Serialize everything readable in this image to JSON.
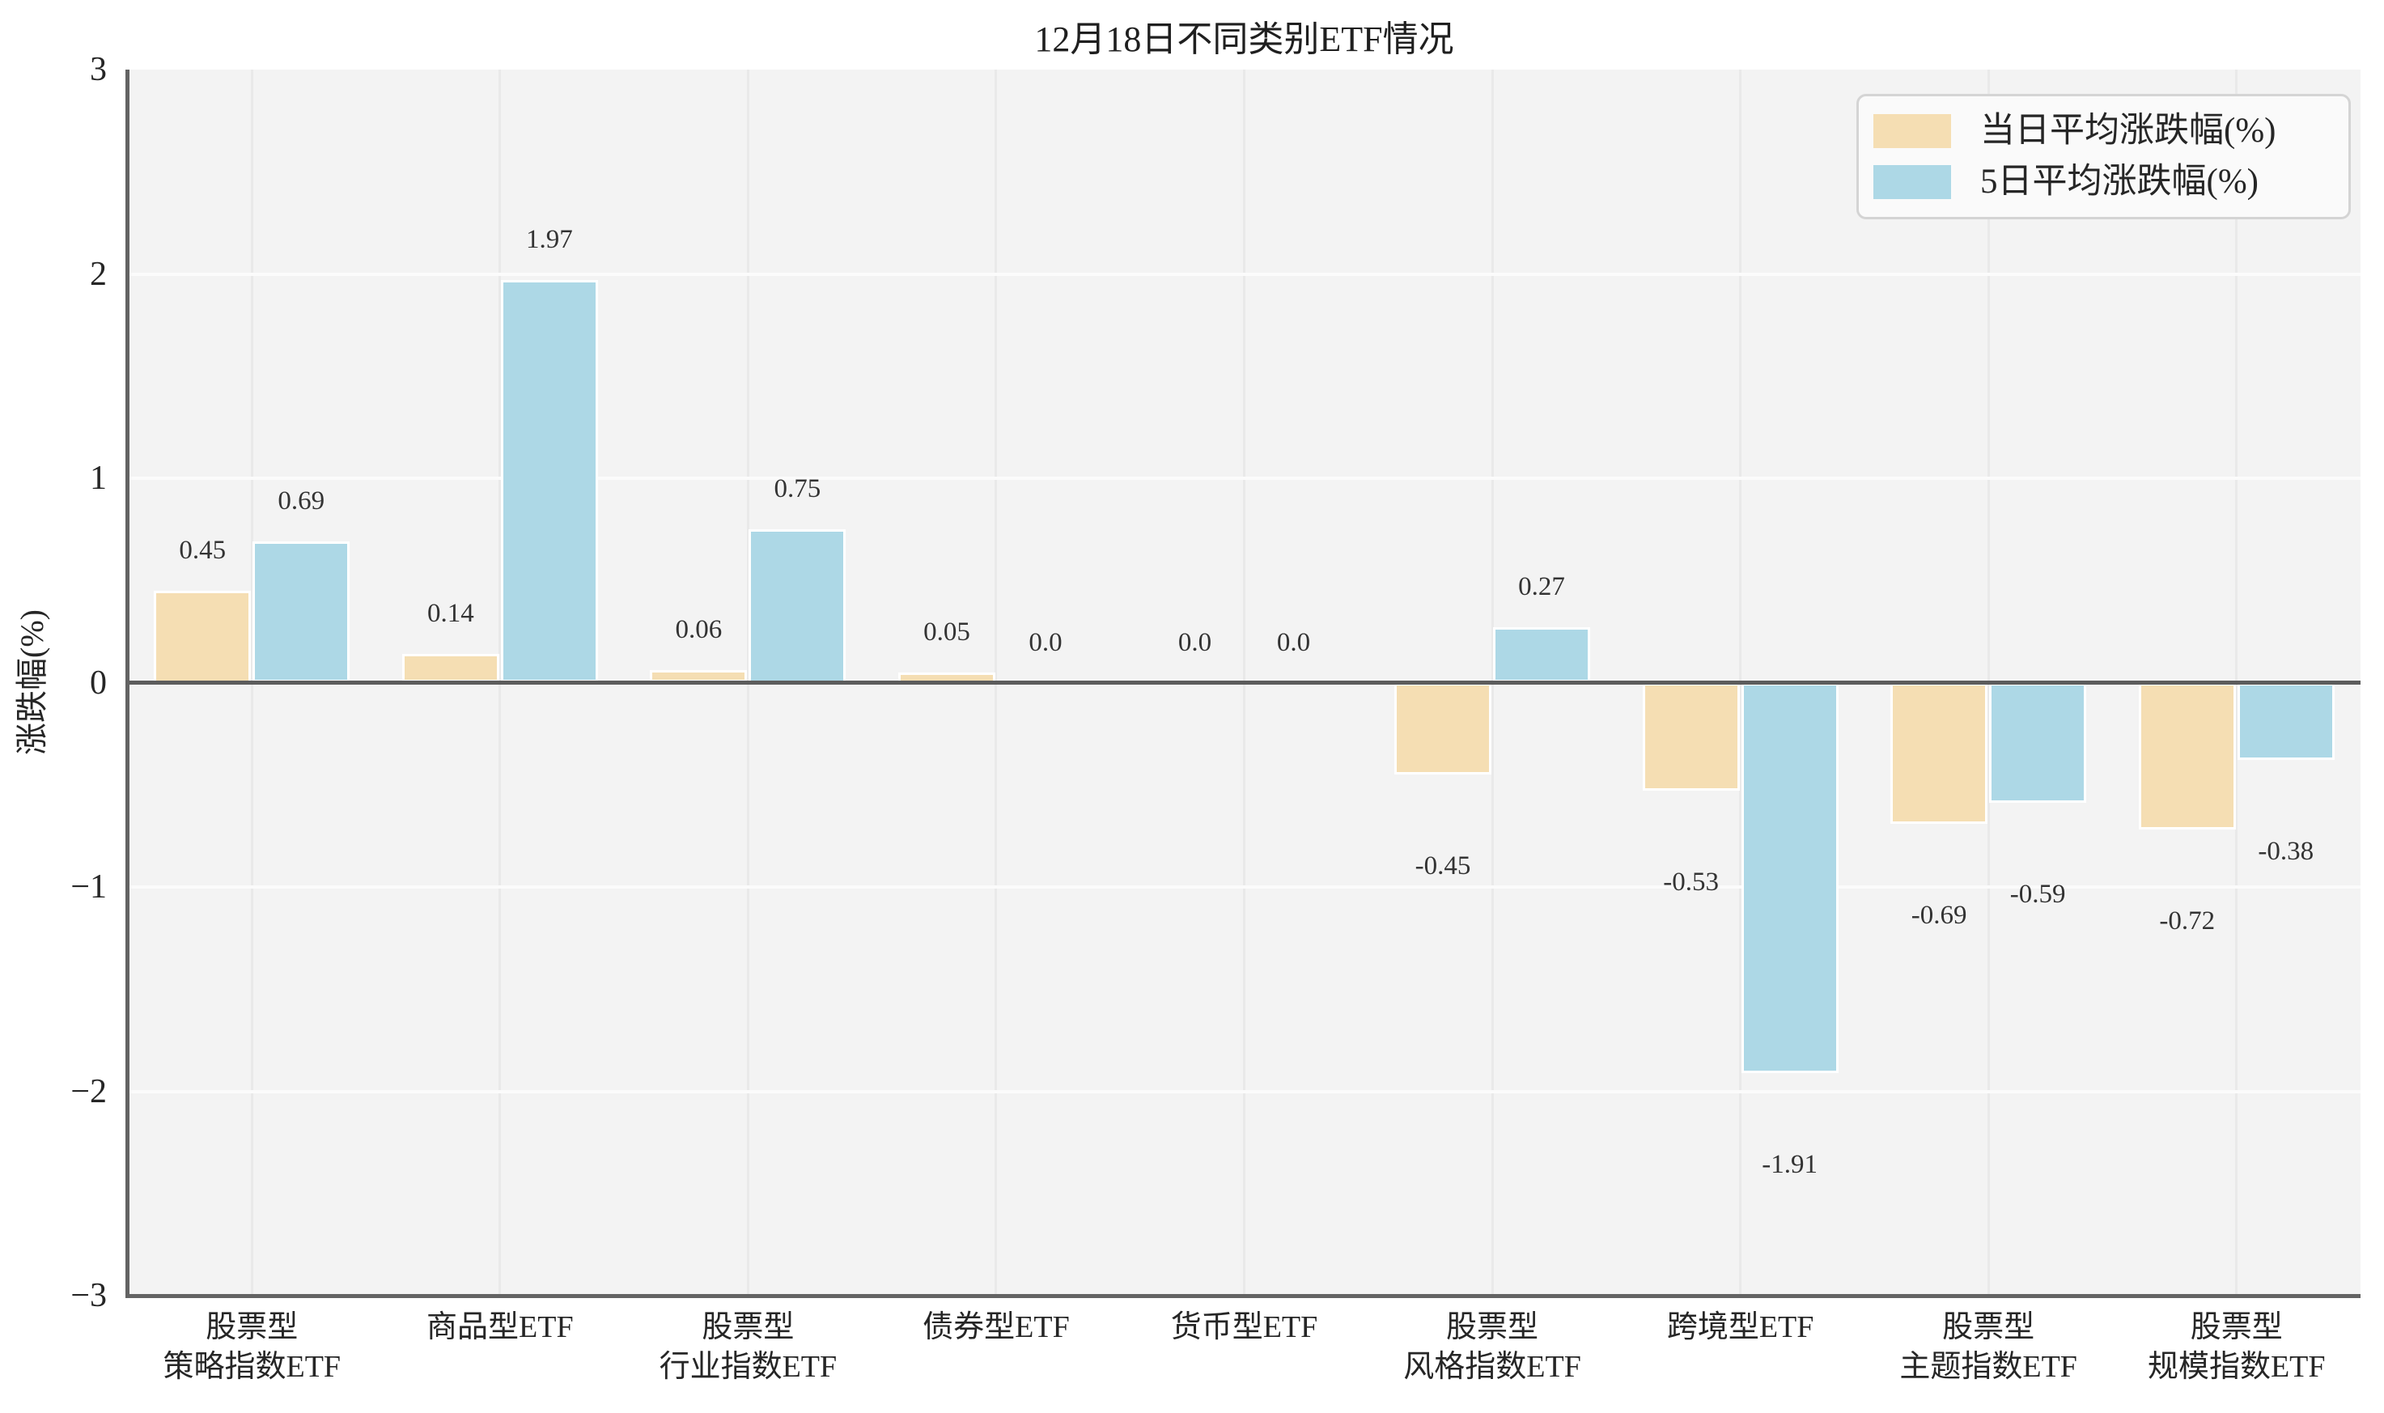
{
  "colors": {
    "bar_daily": "#f5deb3",
    "bar_5day": "#add8e6",
    "plot_bg": "#f3f3f3",
    "h_grid": "#fbfbfb",
    "v_grid": "#e9e9e9",
    "spine": "#636363",
    "zero_line": "#5c5c5c",
    "text": "#262626"
  },
  "chart_data": {
    "type": "bar",
    "title": "12月18日不同类别ETF情况",
    "xlabel": "",
    "ylabel": "涨跌幅(%)",
    "categories": [
      "股票型\n策略指数ETF",
      "商品型ETF",
      "股票型\n行业指数ETF",
      "债券型ETF",
      "货币型ETF",
      "股票型\n风格指数ETF",
      "跨境型ETF",
      "股票型\n主题指数ETF",
      "股票型\n规模指数ETF"
    ],
    "series": [
      {
        "name": "当日平均涨跌幅(%)",
        "color": "#f5deb3",
        "values": [
          0.45,
          0.14,
          0.06,
          0.05,
          0.0,
          -0.45,
          -0.53,
          -0.69,
          -0.72
        ],
        "labels": [
          "0.45",
          "0.14",
          "0.06",
          "0.05",
          "0.0",
          "-0.45",
          "-0.53",
          "-0.69",
          "-0.72"
        ]
      },
      {
        "name": "5日平均涨跌幅(%)",
        "color": "#add8e6",
        "values": [
          0.69,
          1.97,
          0.75,
          0.0,
          0.0,
          0.27,
          -1.91,
          -0.59,
          -0.38
        ],
        "labels": [
          "0.69",
          "1.97",
          "0.75",
          "0.0",
          "0.0",
          "0.27",
          "-1.91",
          "-0.59",
          "-0.38"
        ]
      }
    ],
    "ylim": [
      -3,
      3
    ],
    "yticks": [
      "3",
      "2",
      "1",
      "0",
      "−1",
      "−2",
      "−3"
    ],
    "ytick_values": [
      3,
      2,
      1,
      0,
      -1,
      -2,
      -3
    ],
    "grid": true,
    "legend_position": "upper right"
  }
}
